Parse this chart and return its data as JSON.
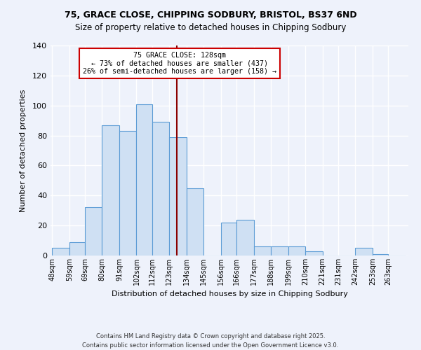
{
  "title_line1": "75, GRACE CLOSE, CHIPPING SODBURY, BRISTOL, BS37 6ND",
  "title_line2": "Size of property relative to detached houses in Chipping Sodbury",
  "xlabel": "Distribution of detached houses by size in Chipping Sodbury",
  "ylabel": "Number of detached properties",
  "categories": [
    "48sqm",
    "59sqm",
    "69sqm",
    "80sqm",
    "91sqm",
    "102sqm",
    "112sqm",
    "123sqm",
    "134sqm",
    "145sqm",
    "156sqm",
    "166sqm",
    "177sqm",
    "188sqm",
    "199sqm",
    "210sqm",
    "221sqm",
    "231sqm",
    "242sqm",
    "253sqm",
    "263sqm"
  ],
  "values": [
    5,
    9,
    32,
    87,
    83,
    101,
    89,
    79,
    45,
    0,
    22,
    24,
    6,
    6,
    6,
    3,
    0,
    0,
    5,
    1,
    0
  ],
  "bar_color": "#cfe0f3",
  "bar_edge_color": "#5b9bd5",
  "vline_x": 128,
  "vline_color": "#8b0000",
  "annotation_title": "75 GRACE CLOSE: 128sqm",
  "annotation_line1": "← 73% of detached houses are smaller (437)",
  "annotation_line2": "26% of semi-detached houses are larger (158) →",
  "annotation_box_color": "#ffffff",
  "annotation_box_edge": "#cc0000",
  "ylim": [
    0,
    140
  ],
  "yticks": [
    0,
    20,
    40,
    60,
    80,
    100,
    120,
    140
  ],
  "footer_line1": "Contains HM Land Registry data © Crown copyright and database right 2025.",
  "footer_line2": "Contains public sector information licensed under the Open Government Licence v3.0.",
  "bg_color": "#eef2fb",
  "grid_color": "#ffffff",
  "bin_edges": [
    48,
    59,
    69,
    80,
    91,
    102,
    112,
    123,
    134,
    145,
    156,
    166,
    177,
    188,
    199,
    210,
    221,
    231,
    242,
    253,
    263,
    274
  ]
}
